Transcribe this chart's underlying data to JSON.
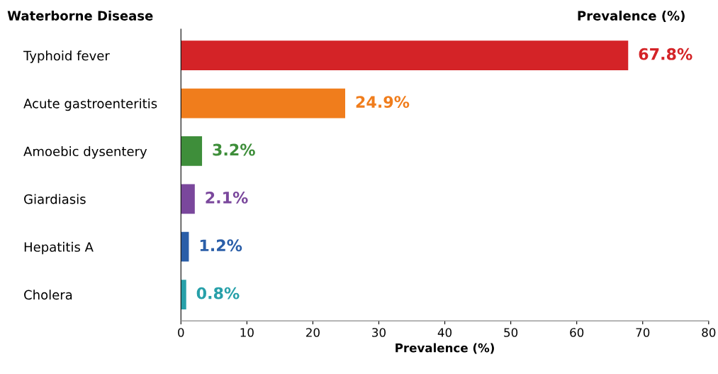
{
  "chart_data": {
    "type": "bar",
    "orientation": "horizontal",
    "ylabel": "Waterborne Disease",
    "xlabel": "Prevalence (%)",
    "annotations": [
      "Prevalence (%)"
    ],
    "categories": [
      "Typhoid fever",
      "Acute gastroenteritis",
      "Amoebic dysentery",
      "Giardiasis",
      "Hepatitis A",
      "Cholera"
    ],
    "values": [
      67.8,
      24.9,
      3.2,
      2.1,
      1.2,
      0.8
    ],
    "colors": [
      "#d42327",
      "#f07d1c",
      "#3e8e3a",
      "#7a479c",
      "#2a5ea8",
      "#27a0a9"
    ],
    "value_labels": [
      "67.8%",
      "24.9%",
      "3.2%",
      "2.1%",
      "1.2%",
      "0.8%"
    ],
    "xlim": [
      0,
      80
    ],
    "xticks": [
      0,
      10,
      20,
      30,
      40,
      50,
      60,
      70,
      80
    ],
    "grid": false
  }
}
